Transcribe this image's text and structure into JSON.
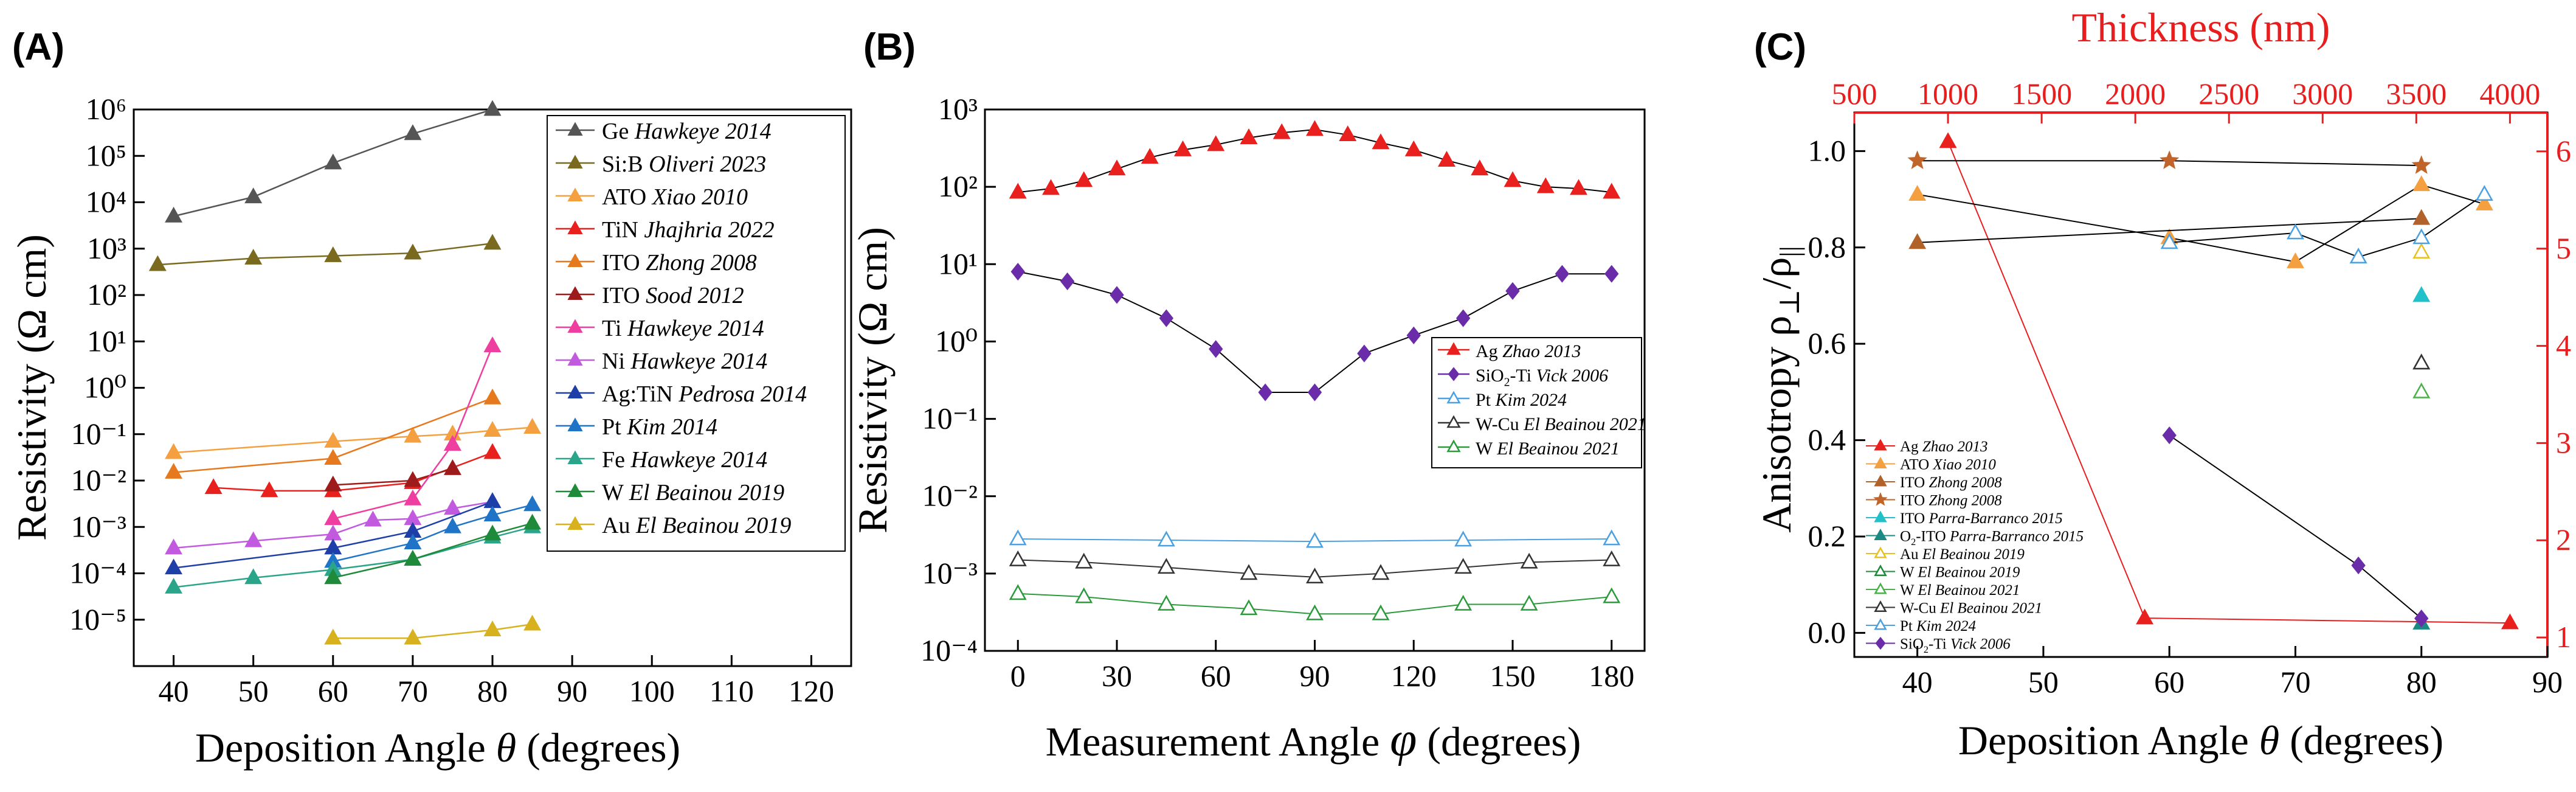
{
  "panels": {
    "a": {
      "letter": "(A)"
    },
    "b": {
      "letter": "(B)"
    },
    "c": {
      "letter": "(C)"
    }
  },
  "chart_data": [
    {
      "type": "line",
      "panel": "(A)",
      "xlabel": "Deposition Angle θ (degrees)",
      "xlabel_parts": {
        "pre": "Deposition Angle ",
        "sym": "θ",
        "post": " (degrees)"
      },
      "ylabel": "Resistivity (Ω cm)",
      "yscale": "log",
      "xlim": [
        35,
        125
      ],
      "ylim_exp": [
        -6,
        6
      ],
      "xticks": [
        40,
        50,
        60,
        70,
        80,
        90,
        100,
        110,
        120
      ],
      "yticks_exp": [
        -5,
        -4,
        -3,
        -2,
        -1,
        0,
        1,
        2,
        3,
        4,
        5,
        6
      ],
      "legend_position": "top-right",
      "series": [
        {
          "material": "Ge",
          "author": "Hawkeye 2014",
          "color": "#555555",
          "marker": "triangle",
          "x": [
            40,
            50,
            60,
            70,
            80
          ],
          "y": [
            5000,
            13000,
            70000,
            300000,
            1000000
          ]
        },
        {
          "material": "Si:B",
          "author": "Oliveri 2023",
          "color": "#7a6a1f",
          "marker": "triangle",
          "x": [
            38,
            50,
            60,
            70,
            80
          ],
          "y": [
            450,
            620,
            700,
            800,
            1300
          ]
        },
        {
          "material": "ATO",
          "author": "Xiao 2010",
          "color": "#f5a040",
          "marker": "triangle",
          "x": [
            40,
            60,
            70,
            75,
            80,
            85
          ],
          "y": [
            0.04,
            0.07,
            0.09,
            0.1,
            0.12,
            0.14
          ]
        },
        {
          "material": "TiN",
          "author": "Jhajhria 2022",
          "color": "#e8201e",
          "marker": "triangle",
          "x": [
            45,
            52,
            60,
            70,
            80
          ],
          "y": [
            0.007,
            0.006,
            0.006,
            0.009,
            0.04
          ]
        },
        {
          "material": "ITO",
          "author": "Zhong 2008",
          "color": "#e6781e",
          "marker": "triangle",
          "x": [
            40,
            60,
            80
          ],
          "y": [
            0.015,
            0.03,
            0.6
          ]
        },
        {
          "material": "ITO",
          "author": "Sood 2012",
          "color": "#9e1b1b",
          "marker": "triangle",
          "x": [
            60,
            70,
            75
          ],
          "y": [
            0.008,
            0.01,
            0.018
          ]
        },
        {
          "material": "Ti",
          "author": "Hawkeye 2014",
          "color": "#ee3ea0",
          "marker": "triangle",
          "x": [
            60,
            70,
            75,
            80
          ],
          "y": [
            0.0015,
            0.004,
            0.06,
            8
          ]
        },
        {
          "material": "Ni",
          "author": "Hawkeye 2014",
          "color": "#c25ae0",
          "marker": "triangle",
          "x": [
            40,
            50,
            60,
            65,
            70,
            75,
            80
          ],
          "y": [
            0.00035,
            0.0005,
            0.0007,
            0.0014,
            0.0015,
            0.0025,
            0.0035
          ]
        },
        {
          "material": "Ag:TiN",
          "author": "Pedrosa 2014",
          "color": "#1e3ea8",
          "marker": "triangle",
          "x": [
            40,
            60,
            70,
            80
          ],
          "y": [
            0.00013,
            0.00035,
            0.0008,
            0.0035
          ]
        },
        {
          "material": "Pt",
          "author": "Kim 2014",
          "color": "#1f74c8",
          "marker": "triangle",
          "x": [
            60,
            70,
            75,
            80,
            85
          ],
          "y": [
            0.00018,
            0.00045,
            0.001,
            0.0018,
            0.003
          ]
        },
        {
          "material": "Fe",
          "author": "Hawkeye 2014",
          "color": "#2aa58a",
          "marker": "triangle",
          "x": [
            40,
            50,
            60,
            70,
            80,
            85
          ],
          "y": [
            5e-05,
            8e-05,
            0.00012,
            0.0002,
            0.0006,
            0.001
          ]
        },
        {
          "material": "W",
          "author": "El Beainou 2019",
          "color": "#1f8a3a",
          "marker": "triangle",
          "x": [
            60,
            70,
            80,
            85
          ],
          "y": [
            8e-05,
            0.0002,
            0.0007,
            0.0012
          ]
        },
        {
          "material": "Au",
          "author": "El Beainou 2019",
          "color": "#d8b21e",
          "marker": "triangle",
          "x": [
            60,
            70,
            80,
            85
          ],
          "y": [
            4e-06,
            4e-06,
            6e-06,
            8e-06
          ]
        }
      ]
    },
    {
      "type": "line",
      "panel": "(B)",
      "xlabel": "Measurement Angle φ (degrees)",
      "xlabel_parts": {
        "pre": "Measurement Angle ",
        "sym": "φ",
        "post": " (degrees)"
      },
      "ylabel": "Resistivity (Ω cm)",
      "yscale": "log",
      "xlim": [
        -10,
        190
      ],
      "ylim_exp": [
        -4,
        3
      ],
      "xticks": [
        0,
        30,
        60,
        90,
        120,
        150,
        180
      ],
      "yticks_exp": [
        -4,
        -3,
        -2,
        -1,
        0,
        1,
        2,
        3
      ],
      "legend_position": "middle-right",
      "series": [
        {
          "material": "Ag",
          "author": "Zhao 2013",
          "color": "#e8201e",
          "marker": "triangle",
          "x": [
            0,
            10,
            20,
            30,
            40,
            50,
            60,
            70,
            80,
            90,
            100,
            110,
            120,
            130,
            140,
            150,
            160,
            170,
            180
          ],
          "y": [
            85,
            95,
            120,
            170,
            240,
            300,
            350,
            430,
            500,
            550,
            470,
            370,
            300,
            220,
            170,
            120,
            100,
            95,
            85
          ]
        },
        {
          "material": "SiO2-Ti",
          "author": "Vick 2006",
          "color": "#6a2ca8",
          "marker": "diamond",
          "x": [
            0,
            15,
            30,
            45,
            60,
            75,
            90,
            105,
            120,
            135,
            150,
            165,
            180
          ],
          "y": [
            8,
            6,
            4,
            2,
            0.8,
            0.22,
            0.22,
            0.7,
            1.2,
            2,
            4.5,
            7.5,
            7.5
          ]
        },
        {
          "material": "Pt",
          "author": "Kim 2024",
          "color": "#4aa0e0",
          "marker": "triangle-open",
          "x": [
            0,
            45,
            90,
            135,
            180
          ],
          "y": [
            0.0028,
            0.0027,
            0.0026,
            0.0027,
            0.0028
          ]
        },
        {
          "material": "W-Cu",
          "author": "El Beainou 2021",
          "color": "#333333",
          "marker": "triangle-open",
          "x": [
            0,
            20,
            45,
            70,
            90,
            110,
            135,
            155,
            180
          ],
          "y": [
            0.0015,
            0.0014,
            0.0012,
            0.001,
            0.0009,
            0.001,
            0.0012,
            0.0014,
            0.0015
          ]
        },
        {
          "material": "W",
          "author": "El Beainou 2021",
          "color": "#2a9a3a",
          "marker": "triangle-open",
          "x": [
            0,
            20,
            45,
            70,
            90,
            110,
            135,
            155,
            180
          ],
          "y": [
            0.00055,
            0.0005,
            0.0004,
            0.00035,
            0.0003,
            0.0003,
            0.0004,
            0.0004,
            0.0005
          ]
        }
      ]
    },
    {
      "type": "line",
      "panel": "(C)",
      "xlabel": "Deposition Angle θ (degrees)",
      "xlabel_parts": {
        "pre": "Deposition Angle ",
        "sym": "θ",
        "post": " (degrees)"
      },
      "ylabel": "Anisotropy ρ⊥/ρ||",
      "ylabel_parts": {
        "pre": "Anisotropy ρ",
        "sub1": "⊥",
        "mid": "/ρ",
        "sub2": "||"
      },
      "xlim": [
        35,
        90
      ],
      "ylim": [
        -0.05,
        1.08
      ],
      "xticks": [
        40,
        50,
        60,
        70,
        80,
        90
      ],
      "yticks": [
        0.0,
        0.2,
        0.4,
        0.6,
        0.8,
        1.0
      ],
      "yticks_labels": [
        "0.0",
        "0.2",
        "0.4",
        "0.6",
        "0.8",
        "1.0"
      ],
      "x2label": "Thickness (nm)",
      "x2lim": [
        500,
        4200
      ],
      "x2ticks": [
        500,
        1000,
        1500,
        2000,
        2500,
        3000,
        3500,
        4000
      ],
      "y2lim": [
        0.8,
        6.4
      ],
      "y2ticks": [
        1,
        2,
        3,
        4,
        5,
        6
      ],
      "axis2_color": "#e81e1e",
      "legend_position": "bottom-left",
      "series": [
        {
          "material": "Ag",
          "author": "Zhao 2013",
          "color": "#e8201e",
          "marker": "triangle",
          "axes": "top-right",
          "x": [
            1000,
            2050,
            4000
          ],
          "y": [
            6.1,
            1.2,
            1.15
          ]
        },
        {
          "material": "ATO",
          "author": "Xiao 2010",
          "color": "#f5a040",
          "marker": "triangle",
          "x": [
            40,
            60,
            70,
            80,
            85
          ],
          "y": [
            0.91,
            0.82,
            0.77,
            0.93,
            0.89
          ]
        },
        {
          "material": "ITO",
          "author": "Zhong 2008",
          "color": "#b0622a",
          "marker": "triangle",
          "x": [
            40,
            80
          ],
          "y": [
            0.81,
            0.86
          ]
        },
        {
          "material": "ITO",
          "author": "Zhong 2008",
          "color": "#c0642a",
          "marker": "star",
          "x": [
            40,
            60,
            80
          ],
          "y": [
            0.98,
            0.98,
            0.97
          ]
        },
        {
          "material": "ITO",
          "author": "Parra-Barranco 2015",
          "color": "#22c0c8",
          "marker": "triangle",
          "x": [
            80
          ],
          "y": [
            0.7
          ]
        },
        {
          "material": "O2-ITO",
          "author": "Parra-Barranco 2015",
          "color": "#1a8a82",
          "marker": "triangle",
          "x": [
            80
          ],
          "y": [
            0.02
          ]
        },
        {
          "material": "Au",
          "author": "El Beainou 2019",
          "color": "#e8c020",
          "marker": "triangle-open",
          "x": [
            80
          ],
          "y": [
            0.79
          ]
        },
        {
          "material": "W",
          "author": "El Beainou 2019",
          "color": "#1f8a3a",
          "marker": "triangle-open",
          "x": [
            80
          ],
          "y": [
            0.56
          ]
        },
        {
          "material": "W",
          "author": "El Beainou 2021",
          "color": "#4ab04a",
          "marker": "triangle-open",
          "x": [
            80
          ],
          "y": [
            0.5
          ]
        },
        {
          "material": "W-Cu",
          "author": "El Beainou 2021",
          "color": "#333333",
          "marker": "triangle-open",
          "x": [
            80
          ],
          "y": [
            0.56
          ]
        },
        {
          "material": "Pt",
          "author": "Kim 2024",
          "color": "#4aa0e0",
          "marker": "triangle-open",
          "x": [
            60,
            70,
            75,
            80,
            85
          ],
          "y": [
            0.81,
            0.83,
            0.78,
            0.82,
            0.91
          ]
        },
        {
          "material": "SiO2-Ti",
          "author": "Vick 2006",
          "color": "#6a2ca8",
          "marker": "diamond",
          "x": [
            60,
            75,
            80
          ],
          "y": [
            0.41,
            0.14,
            0.03
          ]
        }
      ]
    }
  ]
}
